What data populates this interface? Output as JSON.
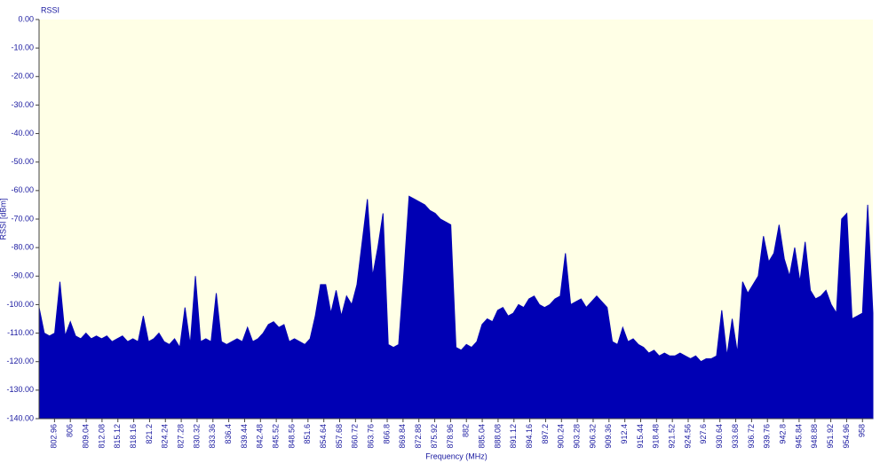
{
  "chart_data": {
    "type": "area",
    "title": "RSSI",
    "y_label": "RSSI [dBm]",
    "x_label": "Frequency (MHz)",
    "color": "#0000b4",
    "background": "#ffffe6",
    "xlim": [
      800,
      960
    ],
    "ylim": [
      -140,
      0
    ],
    "xticks": [
      802.96,
      806,
      809.04,
      812.08,
      815.12,
      818.16,
      821.2,
      824.24,
      827.28,
      830.32,
      833.36,
      836.4,
      839.44,
      842.48,
      845.52,
      848.56,
      851.6,
      854.64,
      857.68,
      860.72,
      863.76,
      866.8,
      869.84,
      872.88,
      875.92,
      878.96,
      882,
      885.04,
      888.08,
      891.12,
      894.16,
      897.2,
      900.24,
      903.28,
      906.32,
      909.36,
      912.4,
      915.44,
      918.48,
      921.52,
      924.56,
      927.6,
      930.64,
      933.68,
      936.72,
      939.76,
      942.8,
      945.84,
      948.88,
      951.92,
      954.96,
      958
    ],
    "yticks": [
      {
        "value": 0,
        "label": "0.00"
      },
      {
        "value": -10,
        "label": "-10.00"
      },
      {
        "value": -20,
        "label": "-20.00"
      },
      {
        "value": -30,
        "label": "-30.00"
      },
      {
        "value": -40,
        "label": "-40.00"
      },
      {
        "value": -50,
        "label": "-50.00"
      },
      {
        "value": -60,
        "label": "-60.00"
      },
      {
        "value": -70,
        "label": "-70.00"
      },
      {
        "value": -80,
        "label": "-80.00"
      },
      {
        "value": -90,
        "label": "-90.00"
      },
      {
        "value": -100,
        "label": "-100.00"
      },
      {
        "value": -110,
        "label": "-110.00"
      },
      {
        "value": -120,
        "label": "-120.00"
      },
      {
        "value": -130,
        "label": "-130.00"
      },
      {
        "value": -140,
        "label": "-140.00"
      }
    ],
    "x": [
      800,
      801,
      802,
      803,
      804,
      805,
      806,
      807,
      808,
      809,
      810,
      811,
      812,
      813,
      814,
      815,
      816,
      817,
      818,
      819,
      820,
      821,
      822,
      823,
      824,
      825,
      826,
      827,
      828,
      829,
      830,
      831,
      832,
      833,
      834,
      835,
      836,
      837,
      838,
      839,
      840,
      841,
      842,
      843,
      844,
      845,
      846,
      847,
      848,
      849,
      850,
      851,
      852,
      853,
      854,
      855,
      856,
      857,
      858,
      859,
      860,
      861,
      862,
      863,
      864,
      865,
      866,
      867,
      868,
      869,
      870,
      871,
      872,
      873,
      874,
      875,
      876,
      877,
      878,
      879,
      880,
      881,
      882,
      883,
      884,
      885,
      886,
      887,
      888,
      889,
      890,
      891,
      892,
      893,
      894,
      895,
      896,
      897,
      898,
      899,
      900,
      901,
      902,
      903,
      904,
      905,
      906,
      907,
      908,
      909,
      910,
      911,
      912,
      913,
      914,
      915,
      916,
      917,
      918,
      919,
      920,
      921,
      922,
      923,
      924,
      925,
      926,
      927,
      928,
      929,
      930,
      931,
      932,
      933,
      934,
      935,
      936,
      937,
      938,
      939,
      940,
      941,
      942,
      943,
      944,
      945,
      946,
      947,
      948,
      949,
      950,
      951,
      952,
      953,
      954,
      955,
      956,
      957,
      958,
      959,
      960
    ],
    "values": [
      -101,
      -110,
      -111,
      -110,
      -92,
      -111,
      -106,
      -111,
      -112,
      -110,
      -112,
      -111,
      -112,
      -111,
      -113,
      -112,
      -111,
      -113,
      -112,
      -113,
      -104,
      -113,
      -112,
      -110,
      -113,
      -114,
      -112,
      -115,
      -101,
      -114,
      -90,
      -113,
      -112,
      -113,
      -96,
      -113,
      -114,
      -113,
      -112,
      -113,
      -108,
      -113,
      -112,
      -110,
      -107,
      -106,
      -108,
      -107,
      -113,
      -112,
      -113,
      -114,
      -112,
      -104,
      -93,
      -93,
      -103,
      -95,
      -104,
      -97,
      -100,
      -93,
      -78,
      -63,
      -90,
      -80,
      -68,
      -114,
      -115,
      -114,
      -89,
      -62,
      -63,
      -64,
      -65,
      -67,
      -68,
      -70,
      -71,
      -72,
      -115,
      -116,
      -114,
      -115,
      -113,
      -107,
      -105,
      -106,
      -102,
      -101,
      -104,
      -103,
      -100,
      -101,
      -98,
      -97,
      -100,
      -101,
      -100,
      -98,
      -97,
      -82,
      -100,
      -99,
      -98,
      -101,
      -99,
      -97,
      -99,
      -101,
      -113,
      -114,
      -108,
      -113,
      -112,
      -114,
      -115,
      -117,
      -116,
      -118,
      -117,
      -118,
      -118,
      -117,
      -118,
      -119,
      -118,
      -120,
      -119,
      -119,
      -118,
      -102,
      -118,
      -105,
      -117,
      -92,
      -96,
      -93,
      -90,
      -76,
      -85,
      -82,
      -72,
      -84,
      -90,
      -80,
      -92,
      -78,
      -95,
      -98,
      -97,
      -95,
      -100,
      -103,
      -70,
      -68,
      -105,
      -104,
      -103,
      -65,
      -103
    ]
  }
}
